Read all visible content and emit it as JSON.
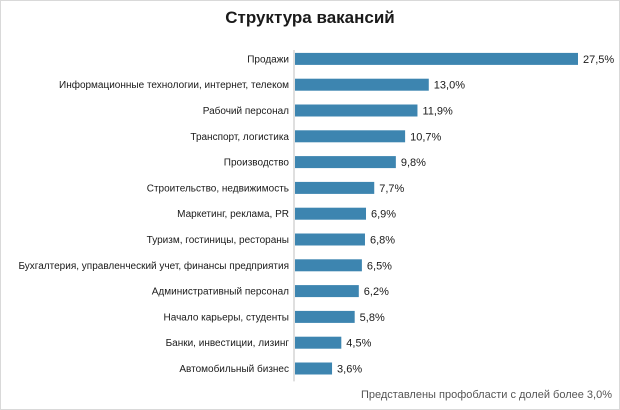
{
  "chart_data": {
    "type": "bar",
    "orientation": "horizontal",
    "title": "Структура вакансий",
    "categories": [
      "Продажи",
      "Информационные технологии, интернет, телеком",
      "Рабочий персонал",
      "Транспорт, логистика",
      "Производство",
      "Строительство, недвижимость",
      "Маркетинг, реклама, PR",
      "Туризм, гостиницы, рестораны",
      "Бухгалтерия, управленческий учет, финансы предприятия",
      "Административный персонал",
      "Начало карьеры, студенты",
      "Банки, инвестиции, лизинг",
      "Автомобильный бизнес"
    ],
    "values": [
      27.5,
      13.0,
      11.9,
      10.7,
      9.8,
      7.7,
      6.9,
      6.8,
      6.5,
      6.2,
      5.8,
      4.5,
      3.6
    ],
    "value_labels": [
      "27,5%",
      "13,0%",
      "11,9%",
      "10,7%",
      "9,8%",
      "7,7%",
      "6,9%",
      "6,8%",
      "6,5%",
      "6,2%",
      "5,8%",
      "4,5%",
      "3,6%"
    ],
    "bar_color": "#3d85b0",
    "grid": false,
    "xlim": [
      0,
      27.5
    ]
  },
  "footnote": "Представлены профобласти с долей более 3,0%"
}
